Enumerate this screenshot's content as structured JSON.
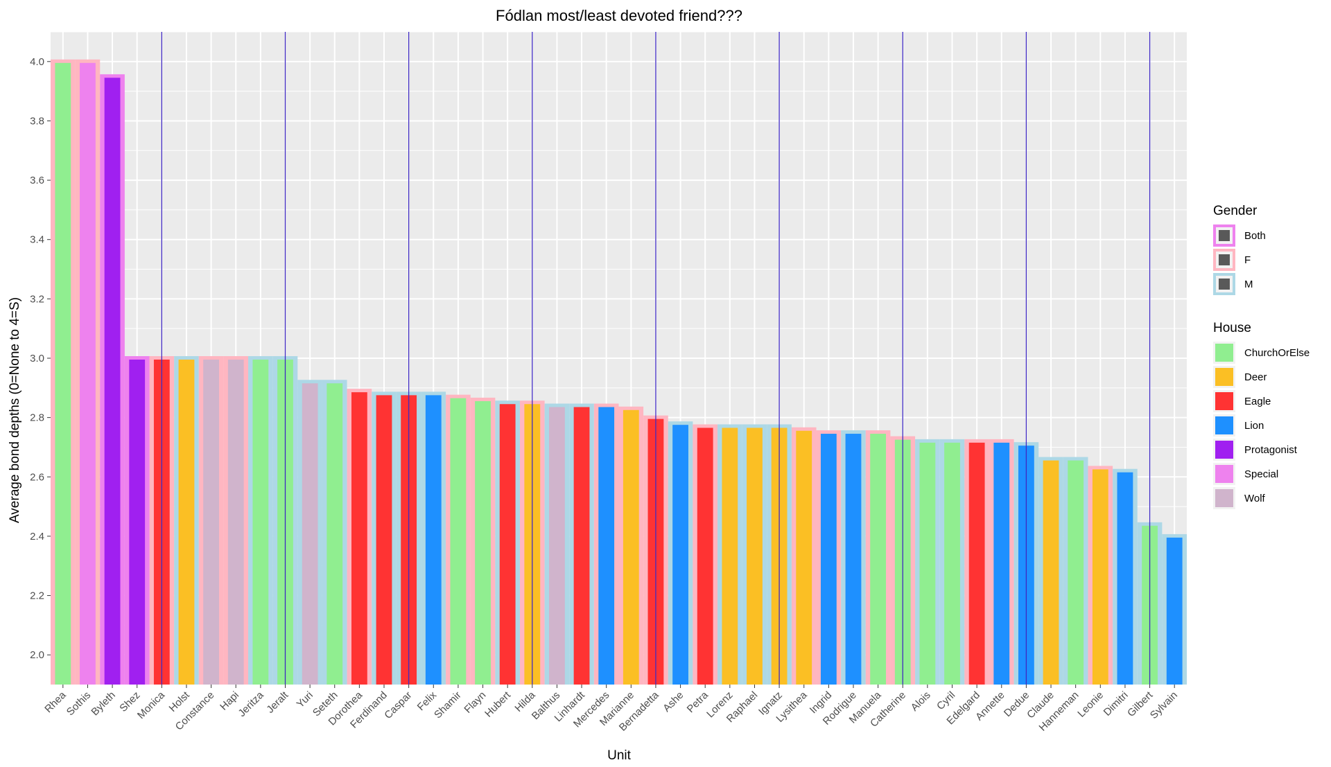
{
  "chart_data": {
    "type": "bar",
    "title": "Fódlan most/least devoted friend???",
    "xlabel": "Unit",
    "ylabel": "Average bond depths (0=None to 4=S)",
    "ylim": [
      1.9,
      4.1
    ],
    "yticks": [
      "2.0",
      "2.2",
      "2.4",
      "2.6",
      "2.8",
      "3.0",
      "3.2",
      "3.4",
      "3.6",
      "3.8",
      "4.0"
    ],
    "grid": true,
    "legend_position": "right",
    "legends": [
      {
        "title": "Gender",
        "entries": [
          {
            "label": "Both",
            "color": "#ee82ee"
          },
          {
            "label": "F",
            "color": "#ffb6c1"
          },
          {
            "label": "M",
            "color": "#add8e6"
          }
        ]
      },
      {
        "title": "House",
        "entries": [
          {
            "label": "ChurchOrElse",
            "color": "#90ee90"
          },
          {
            "label": "Deer",
            "color": "#fbbf24"
          },
          {
            "label": "Eagle",
            "color": "#ff3333"
          },
          {
            "label": "Lion",
            "color": "#1e90ff"
          },
          {
            "label": "Protagonist",
            "color": "#a020f0"
          },
          {
            "label": "Special",
            "color": "#ee82ee"
          },
          {
            "label": "Wolf",
            "color": "#d0b4cc"
          }
        ]
      }
    ],
    "units": [
      {
        "name": "Rhea",
        "value": 4.0,
        "house": "ChurchOrElse",
        "gender": "F"
      },
      {
        "name": "Sothis",
        "value": 4.0,
        "house": "Special",
        "gender": "F"
      },
      {
        "name": "Byleth",
        "value": 3.95,
        "house": "Protagonist",
        "gender": "Both"
      },
      {
        "name": "Shez",
        "value": 3.0,
        "house": "Protagonist",
        "gender": "Both"
      },
      {
        "name": "Monica",
        "value": 3.0,
        "house": "Eagle",
        "gender": "F"
      },
      {
        "name": "Holst",
        "value": 3.0,
        "house": "Deer",
        "gender": "M"
      },
      {
        "name": "Constance",
        "value": 3.0,
        "house": "Wolf",
        "gender": "F"
      },
      {
        "name": "Hapi",
        "value": 3.0,
        "house": "Wolf",
        "gender": "F"
      },
      {
        "name": "Jeritza",
        "value": 3.0,
        "house": "ChurchOrElse",
        "gender": "M"
      },
      {
        "name": "Jeralt",
        "value": 3.0,
        "house": "ChurchOrElse",
        "gender": "M"
      },
      {
        "name": "Yuri",
        "value": 2.92,
        "house": "Wolf",
        "gender": "M"
      },
      {
        "name": "Seteth",
        "value": 2.92,
        "house": "ChurchOrElse",
        "gender": "M"
      },
      {
        "name": "Dorothea",
        "value": 2.89,
        "house": "Eagle",
        "gender": "F"
      },
      {
        "name": "Ferdinand",
        "value": 2.88,
        "house": "Eagle",
        "gender": "M"
      },
      {
        "name": "Caspar",
        "value": 2.88,
        "house": "Eagle",
        "gender": "M"
      },
      {
        "name": "Felix",
        "value": 2.88,
        "house": "Lion",
        "gender": "M"
      },
      {
        "name": "Shamir",
        "value": 2.87,
        "house": "ChurchOrElse",
        "gender": "F"
      },
      {
        "name": "Flayn",
        "value": 2.86,
        "house": "ChurchOrElse",
        "gender": "F"
      },
      {
        "name": "Hubert",
        "value": 2.85,
        "house": "Eagle",
        "gender": "M"
      },
      {
        "name": "Hilda",
        "value": 2.85,
        "house": "Deer",
        "gender": "F"
      },
      {
        "name": "Balthus",
        "value": 2.84,
        "house": "Wolf",
        "gender": "M"
      },
      {
        "name": "Linhardt",
        "value": 2.84,
        "house": "Eagle",
        "gender": "M"
      },
      {
        "name": "Mercedes",
        "value": 2.84,
        "house": "Lion",
        "gender": "F"
      },
      {
        "name": "Marianne",
        "value": 2.83,
        "house": "Deer",
        "gender": "F"
      },
      {
        "name": "Bernadetta",
        "value": 2.8,
        "house": "Eagle",
        "gender": "F"
      },
      {
        "name": "Ashe",
        "value": 2.78,
        "house": "Lion",
        "gender": "M"
      },
      {
        "name": "Petra",
        "value": 2.77,
        "house": "Eagle",
        "gender": "F"
      },
      {
        "name": "Lorenz",
        "value": 2.77,
        "house": "Deer",
        "gender": "M"
      },
      {
        "name": "Raphael",
        "value": 2.77,
        "house": "Deer",
        "gender": "M"
      },
      {
        "name": "Ignatz",
        "value": 2.77,
        "house": "Deer",
        "gender": "M"
      },
      {
        "name": "Lysithea",
        "value": 2.76,
        "house": "Deer",
        "gender": "F"
      },
      {
        "name": "Ingrid",
        "value": 2.75,
        "house": "Lion",
        "gender": "F"
      },
      {
        "name": "Rodrigue",
        "value": 2.75,
        "house": "Lion",
        "gender": "M"
      },
      {
        "name": "Manuela",
        "value": 2.75,
        "house": "ChurchOrElse",
        "gender": "F"
      },
      {
        "name": "Catherine",
        "value": 2.73,
        "house": "ChurchOrElse",
        "gender": "F"
      },
      {
        "name": "Alois",
        "value": 2.72,
        "house": "ChurchOrElse",
        "gender": "M"
      },
      {
        "name": "Cyril",
        "value": 2.72,
        "house": "ChurchOrElse",
        "gender": "M"
      },
      {
        "name": "Edelgard",
        "value": 2.72,
        "house": "Eagle",
        "gender": "F"
      },
      {
        "name": "Annette",
        "value": 2.72,
        "house": "Lion",
        "gender": "F"
      },
      {
        "name": "Dedue",
        "value": 2.71,
        "house": "Lion",
        "gender": "M"
      },
      {
        "name": "Claude",
        "value": 2.66,
        "house": "Deer",
        "gender": "M"
      },
      {
        "name": "Hanneman",
        "value": 2.66,
        "house": "ChurchOrElse",
        "gender": "M"
      },
      {
        "name": "Leonie",
        "value": 2.63,
        "house": "Deer",
        "gender": "F"
      },
      {
        "name": "Dimitri",
        "value": 2.62,
        "house": "Lion",
        "gender": "M"
      },
      {
        "name": "Gilbert",
        "value": 2.44,
        "house": "ChurchOrElse",
        "gender": "M"
      },
      {
        "name": "Sylvain",
        "value": 2.4,
        "house": "Lion",
        "gender": "M"
      }
    ],
    "reference_lines_after": [
      "Monica",
      "Jeralt",
      "Caspar",
      "Hilda",
      "Bernadetta",
      "Ignatz",
      "Catherine",
      "Dedue",
      "Gilbert"
    ],
    "reference_line_color": "#3f2ac2",
    "panel_background": "#ebebeb",
    "grid_color": "#ffffff"
  }
}
